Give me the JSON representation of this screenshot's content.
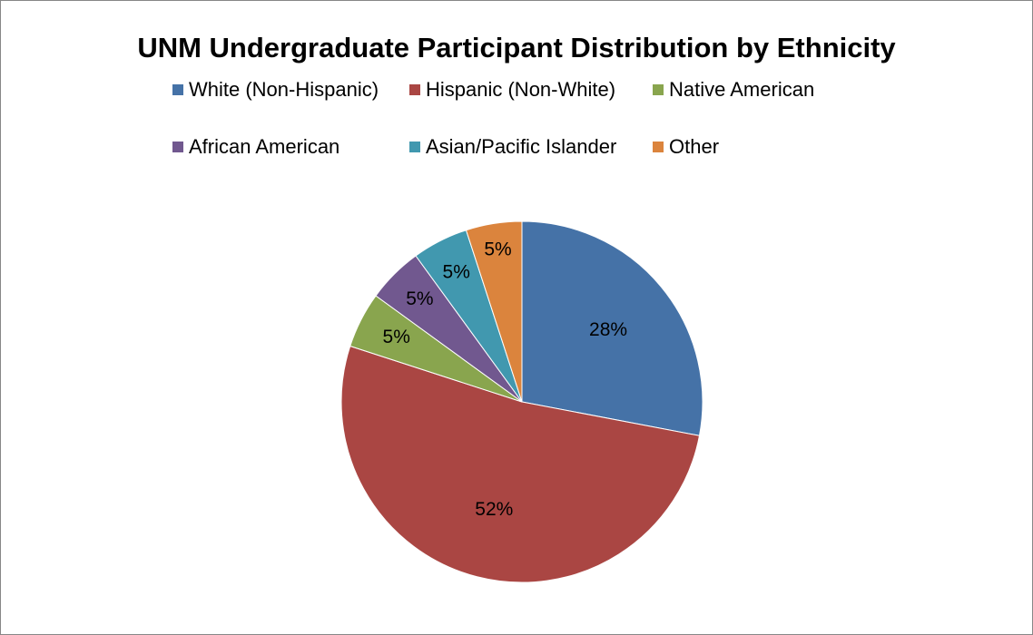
{
  "chart_data": {
    "type": "pie",
    "title": "UNM Undergraduate Participant Distribution by Ethnicity",
    "legend_position": "top",
    "slices": [
      {
        "name": "White (Non-Hispanic)",
        "value": 28,
        "label": "28%",
        "color": "#4572A7"
      },
      {
        "name": "Hispanic (Non-White)",
        "value": 52,
        "label": "52%",
        "color": "#AA4643"
      },
      {
        "name": "Native American",
        "value": 5,
        "label": "5%",
        "color": "#89A54E"
      },
      {
        "name": "African American",
        "value": 5,
        "label": "5%",
        "color": "#71588F"
      },
      {
        "name": "Asian/Pacific Islander",
        "value": 5,
        "label": "5%",
        "color": "#4198AF"
      },
      {
        "name": "Other",
        "value": 5,
        "label": "5%",
        "color": "#DB843D"
      }
    ]
  }
}
